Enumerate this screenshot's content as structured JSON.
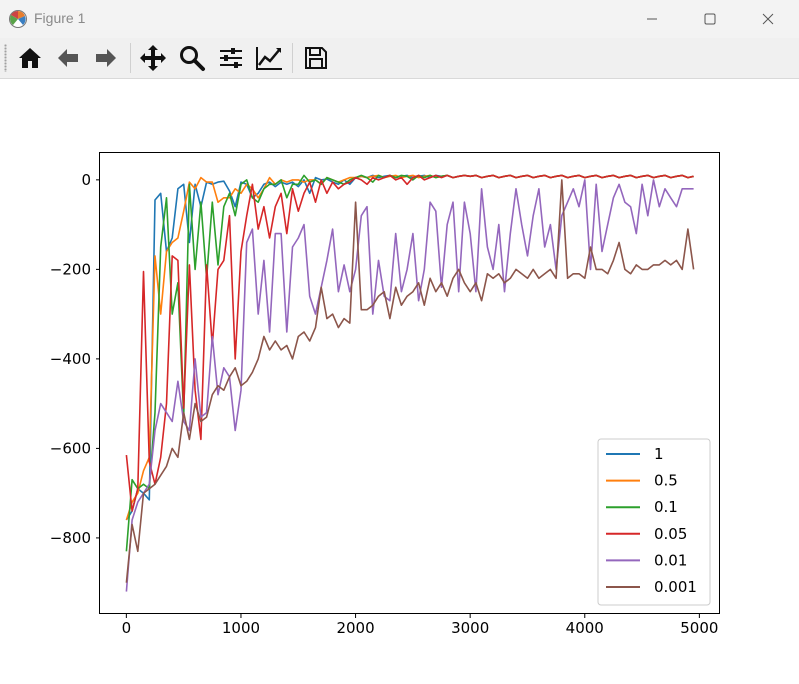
{
  "window": {
    "title": "Figure 1"
  },
  "toolbar": {
    "tools": [
      "home-icon",
      "back-icon",
      "forward-icon",
      "pan-icon",
      "zoom-icon",
      "configure-subplots-icon",
      "edit-axis-icon",
      "save-icon"
    ]
  },
  "chart_data": {
    "type": "line",
    "title": "",
    "xlabel": "",
    "ylabel": "",
    "xlim": [
      -230,
      5180
    ],
    "ylim": [
      -970,
      60
    ],
    "xticks": [
      0,
      1000,
      2000,
      3000,
      4000,
      5000
    ],
    "yticks": [
      0,
      -200,
      -400,
      -600,
      -800
    ],
    "grid": false,
    "legend_position": "lower right",
    "series": [
      {
        "name": "1",
        "color": "#1f77b4",
        "x": [
          0,
          50,
          100,
          150,
          200,
          250,
          300,
          350,
          400,
          450,
          500,
          550,
          600,
          650,
          700,
          750,
          800,
          850,
          900,
          950,
          1000,
          1050,
          1100,
          1150,
          1200,
          1250,
          1300,
          1350,
          1400,
          1450,
          1500,
          1550,
          1600,
          1650,
          1700,
          1750,
          1800,
          1850,
          1900,
          1950,
          2000,
          2050,
          2100,
          2150,
          2200,
          2250,
          2300,
          2350,
          2400,
          2450,
          2500,
          2550,
          2600,
          2650,
          2700,
          2750,
          2800,
          2850,
          2900,
          2950,
          3000,
          3050,
          3100,
          3150,
          3200,
          3250,
          3300,
          3350,
          3400,
          3450,
          3500,
          3550,
          3600,
          3650,
          3700,
          3750,
          3800,
          3850,
          3900,
          3950,
          4000,
          4050,
          4100,
          4150,
          4200,
          4250,
          4300,
          4350,
          4400,
          4450,
          4500,
          4550,
          4600,
          4650,
          4700,
          4750,
          4800,
          4850,
          4900,
          4950
        ],
        "y": [
          -760,
          -740,
          -690,
          -700,
          -715,
          -45,
          -30,
          -160,
          -130,
          -20,
          -10,
          -140,
          -10,
          -60,
          -5,
          -10,
          -5,
          -3,
          -25,
          -60,
          -5,
          -10,
          -40,
          -30,
          -10,
          -5,
          -15,
          -5,
          -10,
          -5,
          -15,
          0,
          -30,
          5,
          0,
          2,
          -5,
          -10,
          0,
          -10,
          5,
          8,
          5,
          10,
          5,
          8,
          10,
          5,
          8,
          10,
          5,
          8,
          10,
          5,
          10,
          8,
          10,
          5,
          8,
          10,
          8,
          10,
          5,
          8,
          10,
          5,
          8,
          10,
          5,
          8,
          10,
          5,
          8,
          10,
          5,
          8,
          10,
          5,
          8,
          10,
          5,
          8,
          10,
          5,
          8,
          10,
          5,
          8,
          10,
          5,
          8,
          10,
          5,
          8,
          10,
          5,
          8,
          10,
          5,
          8
        ]
      },
      {
        "name": "0.5",
        "color": "#ff7f0e",
        "x": [
          0,
          50,
          100,
          150,
          200,
          250,
          300,
          350,
          400,
          450,
          500,
          550,
          600,
          650,
          700,
          750,
          800,
          850,
          900,
          950,
          1000,
          1050,
          1100,
          1150,
          1200,
          1250,
          1300,
          1350,
          1400,
          1450,
          1500,
          1550,
          1600,
          1650,
          1700,
          1750,
          1800,
          1850,
          1900,
          1950,
          2000,
          2050,
          2100,
          2150,
          2200,
          2250,
          2300,
          2350,
          2400,
          2450,
          2500,
          2550,
          2600,
          2650,
          2700,
          2750,
          2800,
          2850,
          2900,
          2950,
          3000,
          3050,
          3100,
          3150,
          3200,
          3250,
          3300,
          3350,
          3400,
          3450,
          3500,
          3550,
          3600,
          3650,
          3700,
          3750,
          3800,
          3850,
          3900,
          3950,
          4000,
          4050,
          4100,
          4150,
          4200,
          4250,
          4300,
          4350,
          4400,
          4450,
          4500,
          4550,
          4600,
          4650,
          4700,
          4750,
          4800,
          4850,
          4900,
          4950
        ],
        "y": [
          -760,
          -720,
          -700,
          -650,
          -620,
          -170,
          -300,
          -160,
          -140,
          -130,
          -70,
          -5,
          -20,
          5,
          -5,
          -5,
          -50,
          -40,
          -40,
          -20,
          -30,
          -10,
          -20,
          -40,
          -20,
          5,
          -10,
          0,
          -5,
          0,
          0,
          -5,
          0,
          0,
          -10,
          5,
          0,
          -5,
          0,
          5,
          5,
          8,
          5,
          8,
          10,
          5,
          8,
          10,
          5,
          8,
          10,
          5,
          8,
          10,
          5,
          8,
          10,
          5,
          8,
          10,
          8,
          10,
          5,
          8,
          10,
          5,
          8,
          10,
          5,
          8,
          10,
          5,
          8,
          10,
          5,
          8,
          10,
          5,
          8,
          10,
          5,
          8,
          10,
          5,
          8,
          10,
          5,
          8,
          10,
          5,
          8,
          10,
          5,
          8,
          10,
          5,
          8,
          10,
          5,
          8
        ]
      },
      {
        "name": "0.1",
        "color": "#2ca02c",
        "x": [
          0,
          50,
          100,
          150,
          200,
          250,
          300,
          350,
          400,
          450,
          500,
          550,
          600,
          650,
          700,
          750,
          800,
          850,
          900,
          950,
          1000,
          1050,
          1100,
          1150,
          1200,
          1250,
          1300,
          1350,
          1400,
          1450,
          1500,
          1550,
          1600,
          1650,
          1700,
          1750,
          1800,
          1850,
          1900,
          1950,
          2000,
          2050,
          2100,
          2150,
          2200,
          2250,
          2300,
          2350,
          2400,
          2450,
          2500,
          2550,
          2600,
          2650,
          2700,
          2750,
          2800,
          2850,
          2900,
          2950,
          3000,
          3050,
          3100,
          3150,
          3200,
          3250,
          3300,
          3350,
          3400,
          3450,
          3500,
          3550,
          3600,
          3650,
          3700,
          3750,
          3800,
          3850,
          3900,
          3950,
          4000,
          4050,
          4100,
          4150,
          4200,
          4250,
          4300,
          4350,
          4400,
          4450,
          4500,
          4550,
          4600,
          4650,
          4700,
          4750,
          4800,
          4850,
          4900,
          4950
        ],
        "y": [
          -830,
          -670,
          -690,
          -680,
          -690,
          -520,
          -150,
          -40,
          -300,
          -230,
          -530,
          -10,
          -200,
          -50,
          -220,
          -50,
          -190,
          -60,
          -30,
          -80,
          -10,
          0,
          -40,
          -50,
          -20,
          -10,
          -10,
          0,
          -40,
          -10,
          -10,
          10,
          -5,
          0,
          -10,
          5,
          0,
          -5,
          -10,
          0,
          5,
          10,
          5,
          -5,
          10,
          5,
          10,
          5,
          10,
          8,
          0,
          10,
          5,
          10,
          5,
          8,
          10,
          5,
          8,
          10,
          8,
          10,
          5,
          8,
          10,
          5,
          8,
          10,
          5,
          8,
          10,
          5,
          8,
          10,
          5,
          8,
          10,
          5,
          8,
          10,
          5,
          8,
          10,
          5,
          8,
          10,
          5,
          8,
          10,
          5,
          8,
          10,
          5,
          8,
          10,
          5,
          8,
          10,
          5,
          8
        ]
      },
      {
        "name": "0.05",
        "color": "#d62728",
        "x": [
          0,
          50,
          100,
          150,
          200,
          250,
          300,
          350,
          400,
          450,
          500,
          550,
          600,
          650,
          700,
          750,
          800,
          850,
          900,
          950,
          1000,
          1050,
          1100,
          1150,
          1200,
          1250,
          1300,
          1350,
          1400,
          1450,
          1500,
          1550,
          1600,
          1650,
          1700,
          1750,
          1800,
          1850,
          1900,
          1950,
          2000,
          2050,
          2100,
          2150,
          2200,
          2250,
          2300,
          2350,
          2400,
          2450,
          2500,
          2550,
          2600,
          2650,
          2700,
          2750,
          2800,
          2850,
          2900,
          2950,
          3000,
          3050,
          3100,
          3150,
          3200,
          3250,
          3300,
          3350,
          3400,
          3450,
          3500,
          3550,
          3600,
          3650,
          3700,
          3750,
          3800,
          3850,
          3900,
          3950,
          4000,
          4050,
          4100,
          4150,
          4200,
          4250,
          4300,
          4350,
          4400,
          4450,
          4500,
          4550,
          4600,
          4650,
          4700,
          4750,
          4800,
          4850,
          4900,
          4950
        ],
        "y": [
          -615,
          -740,
          -690,
          -205,
          -630,
          -680,
          -620,
          -500,
          -170,
          -180,
          -510,
          -190,
          -470,
          -580,
          -190,
          -370,
          -200,
          -180,
          -80,
          -400,
          -160,
          -80,
          -10,
          -110,
          -60,
          -130,
          -60,
          -30,
          -120,
          -20,
          -70,
          -30,
          -5,
          -50,
          0,
          -30,
          -5,
          -20,
          -10,
          -5,
          5,
          0,
          -10,
          5,
          0,
          5,
          10,
          0,
          5,
          -10,
          5,
          10,
          0,
          5,
          10,
          5,
          10,
          5,
          8,
          10,
          8,
          10,
          5,
          8,
          10,
          5,
          8,
          10,
          5,
          8,
          10,
          5,
          8,
          10,
          5,
          8,
          10,
          5,
          8,
          10,
          5,
          8,
          10,
          5,
          8,
          10,
          5,
          8,
          10,
          5,
          8,
          10,
          5,
          8,
          10,
          5,
          8,
          10,
          5,
          8
        ]
      },
      {
        "name": "0.01",
        "color": "#9467bd",
        "x": [
          0,
          50,
          100,
          150,
          200,
          250,
          300,
          350,
          400,
          450,
          500,
          550,
          600,
          650,
          700,
          750,
          800,
          850,
          900,
          950,
          1000,
          1050,
          1100,
          1150,
          1200,
          1250,
          1300,
          1350,
          1400,
          1450,
          1500,
          1550,
          1600,
          1650,
          1700,
          1750,
          1800,
          1850,
          1900,
          1950,
          2000,
          2050,
          2100,
          2150,
          2200,
          2250,
          2300,
          2350,
          2400,
          2450,
          2500,
          2550,
          2600,
          2650,
          2700,
          2750,
          2800,
          2850,
          2900,
          2950,
          3000,
          3050,
          3100,
          3150,
          3200,
          3250,
          3300,
          3350,
          3400,
          3450,
          3500,
          3550,
          3600,
          3650,
          3700,
          3750,
          3800,
          3850,
          3900,
          3950,
          4000,
          4050,
          4100,
          4150,
          4200,
          4250,
          4300,
          4350,
          4400,
          4450,
          4500,
          4550,
          4600,
          4650,
          4700,
          4750,
          4800,
          4850,
          4900,
          4950
        ],
        "y": [
          -920,
          -760,
          -720,
          -700,
          -680,
          -560,
          -500,
          -520,
          -540,
          -450,
          -540,
          -560,
          -400,
          -530,
          -520,
          -350,
          -480,
          -420,
          -440,
          -560,
          -470,
          -140,
          -110,
          -300,
          -180,
          -340,
          -120,
          -120,
          -340,
          -150,
          -130,
          -100,
          -260,
          -300,
          -240,
          -180,
          -110,
          -250,
          -190,
          -250,
          -200,
          -80,
          -60,
          -300,
          -180,
          -260,
          -270,
          -120,
          -250,
          -200,
          -120,
          -270,
          -200,
          -50,
          -70,
          -240,
          -100,
          -50,
          -250,
          -50,
          -120,
          -250,
          -20,
          -150,
          -200,
          -100,
          -250,
          -120,
          -20,
          -100,
          -170,
          -80,
          -20,
          -150,
          -100,
          -200,
          -80,
          -50,
          -20,
          -60,
          0,
          -200,
          -10,
          -160,
          -100,
          -40,
          -10,
          -50,
          -60,
          -120,
          -10,
          -80,
          0,
          -60,
          -20,
          -40,
          -60,
          -20,
          -20,
          -20
        ]
      },
      {
        "name": "0.001",
        "color": "#8c564b",
        "x": [
          0,
          50,
          100,
          150,
          200,
          250,
          300,
          350,
          400,
          450,
          500,
          550,
          600,
          650,
          700,
          750,
          800,
          850,
          900,
          950,
          1000,
          1050,
          1100,
          1150,
          1200,
          1250,
          1300,
          1350,
          1400,
          1450,
          1500,
          1550,
          1600,
          1650,
          1700,
          1750,
          1800,
          1850,
          1900,
          1950,
          2000,
          2050,
          2100,
          2150,
          2200,
          2250,
          2300,
          2350,
          2400,
          2450,
          2500,
          2550,
          2600,
          2650,
          2700,
          2750,
          2800,
          2850,
          2900,
          2950,
          3000,
          3050,
          3100,
          3150,
          3200,
          3250,
          3300,
          3350,
          3400,
          3450,
          3500,
          3550,
          3600,
          3650,
          3700,
          3750,
          3800,
          3850,
          3900,
          3950,
          4000,
          4050,
          4100,
          4150,
          4200,
          4250,
          4300,
          4350,
          4400,
          4450,
          4500,
          4550,
          4600,
          4650,
          4700,
          4750,
          4800,
          4850,
          4900,
          4950
        ],
        "y": [
          -900,
          -770,
          -830,
          -700,
          -690,
          -680,
          -660,
          -640,
          -600,
          -620,
          -520,
          -580,
          -500,
          -540,
          -530,
          -480,
          -460,
          -470,
          -440,
          -420,
          -460,
          -450,
          -430,
          -400,
          -350,
          -380,
          -360,
          -380,
          -370,
          -400,
          -350,
          -340,
          -360,
          -330,
          -240,
          -310,
          -300,
          -330,
          -310,
          -320,
          -50,
          -290,
          -290,
          -280,
          -260,
          -250,
          -310,
          -240,
          -280,
          -260,
          -250,
          -230,
          -280,
          -220,
          -250,
          -230,
          -260,
          -220,
          -200,
          -230,
          -250,
          -230,
          -270,
          -210,
          -220,
          -210,
          -230,
          -220,
          -200,
          -210,
          -220,
          -200,
          -220,
          -210,
          -200,
          -220,
          0,
          -220,
          -210,
          -210,
          -220,
          -150,
          -200,
          -200,
          -210,
          -180,
          -140,
          -200,
          -210,
          -190,
          -200,
          -200,
          -190,
          -190,
          -180,
          -190,
          -180,
          -200,
          -110,
          -200
        ]
      }
    ]
  }
}
